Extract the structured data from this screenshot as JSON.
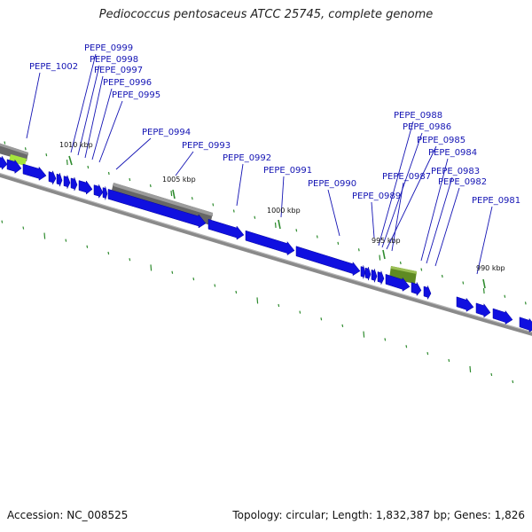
{
  "title": "Pediococcus pentosaceus ATCC 25745, complete genome",
  "footer": {
    "accession": "Accession: NC_008525",
    "summary": "Topology: circular; Length: 1,832,387 bp; Genes: 1,826"
  },
  "colors": {
    "gene_fill": "#1010e0",
    "gene_label": "#1414b4",
    "backbone": "#808080",
    "tick": "#2e8b2e",
    "gray_feature": "#707070",
    "olive_feature": "#6b8e23",
    "lime_feature": "#9acd32"
  },
  "scale_labels": [
    "1010 kbp",
    "1005 kbp",
    "1000 kbp",
    "995 kbp",
    "990 kbp"
  ],
  "gene_labels": [
    "PEPE_1002",
    "PEPE_0999",
    "PEPE_0998",
    "PEPE_0997",
    "PEPE_0996",
    "PEPE_0995",
    "PEPE_0994",
    "PEPE_0993",
    "PEPE_0992",
    "PEPE_0991",
    "PEPE_0990",
    "PEPE_0989",
    "PEPE_0988",
    "PEPE_0986",
    "PEPE_0985",
    "PEPE_0987",
    "PEPE_0984",
    "PEPE_0983",
    "PEPE_0982",
    "PEPE_0981"
  ]
}
